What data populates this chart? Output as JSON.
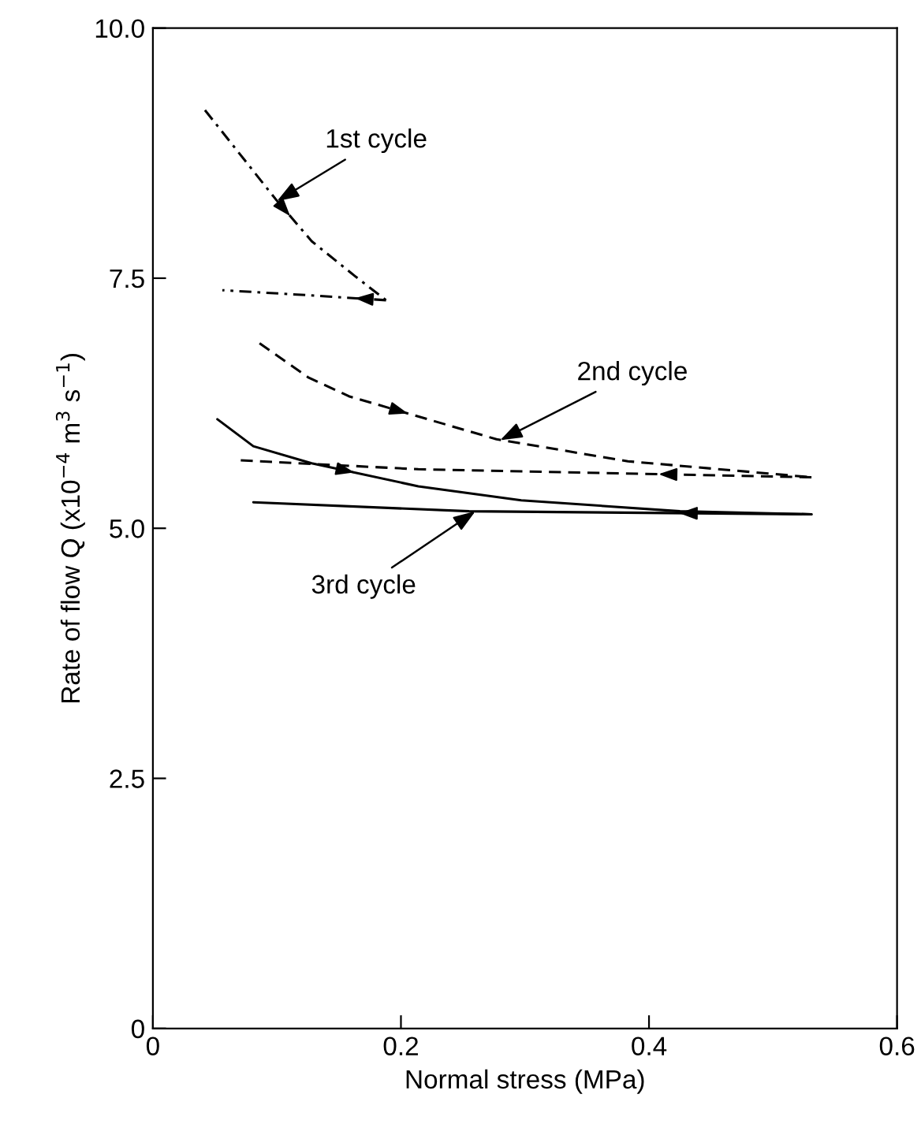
{
  "chart_data": {
    "type": "line",
    "xlabel": "Normal stress (MPa)",
    "ylabel": "Rate of flow Q (x10$^{−4}$ m$^{3}$ s$^{−1}$)",
    "xlim": [
      0,
      0.6
    ],
    "xticks": [
      {
        "value": 0,
        "label": "0"
      },
      0.2,
      0.4,
      0.6
    ],
    "ylim": [
      0,
      10
    ],
    "yticks": [
      {
        "value": 0,
        "label": "0"
      },
      {
        "value": 2.5,
        "label": "2.5"
      },
      {
        "value": 5,
        "label": "5.0"
      },
      {
        "value": 7.5,
        "label": "7.5"
      },
      {
        "value": 10,
        "label": "10.0"
      }
    ],
    "grid": false,
    "legend": false,
    "marker": "none",
    "series": [
      {
        "color": "#000000",
        "line_style": "dashdot",
        "x": [
          0.042,
          0.099,
          0.128,
          0.163,
          0.188
        ],
        "values": [
          9.18,
          8.29,
          7.87,
          7.52,
          7.28
        ]
      },
      {
        "color": "#000000",
        "line_style": "dashdot",
        "x": [
          0.188,
          0.125,
          0.056
        ],
        "values": [
          7.28,
          7.33,
          7.38
        ]
      },
      {
        "color": "#000000",
        "line_style": "dashed",
        "x": [
          0.086,
          0.125,
          0.158,
          0.277,
          0.383,
          0.531
        ],
        "values": [
          6.85,
          6.51,
          6.32,
          5.89,
          5.67,
          5.51
        ]
      },
      {
        "color": "#000000",
        "line_style": "dashed",
        "x": [
          0.531,
          0.214,
          0.069
        ],
        "values": [
          5.51,
          5.59,
          5.68
        ]
      },
      {
        "color": "#000000",
        "line_style": "solid",
        "x": [
          0.052,
          0.081,
          0.128,
          0.214,
          0.297,
          0.425,
          0.531
        ],
        "values": [
          6.09,
          5.82,
          5.65,
          5.42,
          5.28,
          5.17,
          5.14
        ]
      },
      {
        "color": "#000000",
        "line_style": "solid",
        "x": [
          0.531,
          0.255,
          0.081
        ],
        "values": [
          5.14,
          5.17,
          5.26
        ]
      }
    ],
    "annotations": [
      {
        "text": "1st cycle",
        "x": 0.1,
        "y": 8.27
      },
      {
        "text": "2nd cycle",
        "x": 0.28,
        "y": 5.88
      },
      {
        "text": "3rd cycle",
        "x": 0.26,
        "y": 5.17
      }
    ]
  }
}
